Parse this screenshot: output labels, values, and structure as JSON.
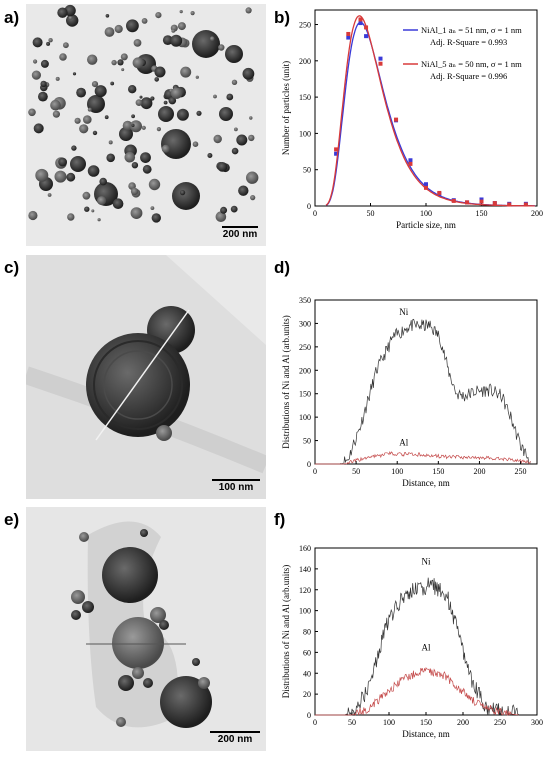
{
  "panels": {
    "a": {
      "letter": "a)",
      "scale_label": "200 nm"
    },
    "b": {
      "letter": "b)"
    },
    "c": {
      "letter": "c)",
      "scale_label": "100 nm"
    },
    "d": {
      "letter": "d)"
    },
    "e": {
      "letter": "e)",
      "scale_label": "200 nm"
    },
    "f": {
      "letter": "f)"
    }
  },
  "chart_data": [
    {
      "id": "b",
      "type": "line",
      "xlabel": "Particle size, nm",
      "ylabel": "Number of particles (unit)",
      "xlim": [
        0,
        200
      ],
      "ylim": [
        0,
        270
      ],
      "xticks": [
        0,
        50,
        100,
        150,
        200
      ],
      "yticks": [
        0,
        50,
        100,
        150,
        200,
        250
      ],
      "legend": [
        {
          "name": "NiAl_1",
          "fit": "aₙ = 51 nm, σ = 1 nm",
          "r2": "Adj. R-Square = 0.993",
          "color": "#3a3ad8"
        },
        {
          "name": "NiAl_5",
          "fit": "aₙ = 50 nm, σ = 1 nm",
          "r2": "Adj. R-Square = 0.996",
          "color": "#d83a3a"
        }
      ],
      "series": [
        {
          "color": "#3a3ad8",
          "points": [
            [
              19,
              72
            ],
            [
              30,
              232
            ],
            [
              41,
              252
            ],
            [
              46,
              234
            ],
            [
              59,
              203
            ],
            [
              73,
              118
            ],
            [
              86,
              63
            ],
            [
              100,
              30
            ],
            [
              112,
              17
            ],
            [
              125,
              8
            ],
            [
              137,
              5
            ],
            [
              150,
              9
            ],
            [
              162,
              4
            ],
            [
              175,
              3
            ],
            [
              190,
              3
            ]
          ],
          "fit": {
            "mode": 41,
            "peak": 253
          }
        },
        {
          "color": "#d83a3a",
          "points": [
            [
              19,
              78
            ],
            [
              30,
              237
            ],
            [
              41,
              257
            ],
            [
              46,
              246
            ],
            [
              59,
              196
            ],
            [
              73,
              119
            ],
            [
              86,
              58
            ],
            [
              100,
              25
            ],
            [
              112,
              18
            ],
            [
              125,
              7
            ],
            [
              137,
              5
            ],
            [
              150,
              6
            ],
            [
              162,
              4
            ],
            [
              175,
              2
            ],
            [
              190,
              2
            ]
          ],
          "fit": {
            "mode": 40,
            "peak": 262
          }
        }
      ]
    },
    {
      "id": "d",
      "type": "line",
      "xlabel": "Distance, nm",
      "ylabel": "Distributions of Ni and Al (arb.units)",
      "xlim": [
        0,
        270
      ],
      "ylim": [
        0,
        350
      ],
      "xticks": [
        0,
        50,
        100,
        150,
        200,
        250
      ],
      "yticks": [
        0,
        50,
        100,
        150,
        200,
        250,
        300,
        350
      ],
      "series": [
        {
          "name": "Ni",
          "color": "#333333",
          "profile": [
            [
              0,
              0
            ],
            [
              30,
              0
            ],
            [
              40,
              10
            ],
            [
              55,
              80
            ],
            [
              75,
              200
            ],
            [
              95,
              270
            ],
            [
              115,
              295
            ],
            [
              140,
              295
            ],
            [
              152,
              270
            ],
            [
              162,
              200
            ],
            [
              172,
              150
            ],
            [
              182,
              145
            ],
            [
              195,
              155
            ],
            [
              212,
              158
            ],
            [
              227,
              145
            ],
            [
              238,
              100
            ],
            [
              250,
              40
            ],
            [
              262,
              5
            ]
          ],
          "noise": 14
        },
        {
          "name": "Al",
          "color": "#c44a4a",
          "profile": [
            [
              0,
              0
            ],
            [
              35,
              0
            ],
            [
              60,
              12
            ],
            [
              90,
              22
            ],
            [
              125,
              20
            ],
            [
              160,
              15
            ],
            [
              200,
              14
            ],
            [
              235,
              10
            ],
            [
              262,
              3
            ]
          ],
          "noise": 4
        }
      ],
      "annotations": [
        {
          "text": "Ni",
          "x": 108,
          "y": 318
        },
        {
          "text": "Al",
          "x": 108,
          "y": 40
        }
      ]
    },
    {
      "id": "f",
      "type": "line",
      "xlabel": "Distance, nm",
      "ylabel": "Distributions of Ni and Al (arb.units)",
      "xlim": [
        0,
        300
      ],
      "ylim": [
        0,
        160
      ],
      "xticks": [
        0,
        50,
        100,
        150,
        200,
        250,
        300
      ],
      "yticks": [
        0,
        20,
        40,
        60,
        80,
        100,
        120,
        140,
        160
      ],
      "series": [
        {
          "name": "Ni",
          "color": "#333333",
          "profile": [
            [
              0,
              0
            ],
            [
              40,
              0
            ],
            [
              55,
              5
            ],
            [
              75,
              30
            ],
            [
              95,
              85
            ],
            [
              115,
              110
            ],
            [
              135,
              120
            ],
            [
              158,
              125
            ],
            [
              178,
              115
            ],
            [
              195,
              75
            ],
            [
              212,
              30
            ],
            [
              232,
              8
            ],
            [
              255,
              3
            ],
            [
              275,
              1
            ]
          ],
          "noise": 8
        },
        {
          "name": "Al",
          "color": "#c44a4a",
          "profile": [
            [
              0,
              0
            ],
            [
              50,
              0
            ],
            [
              70,
              5
            ],
            [
              95,
              20
            ],
            [
              120,
              35
            ],
            [
              150,
              43
            ],
            [
              175,
              38
            ],
            [
              200,
              22
            ],
            [
              225,
              8
            ],
            [
              255,
              2
            ],
            [
              275,
              0
            ]
          ],
          "noise": 4
        }
      ],
      "annotations": [
        {
          "text": "Ni",
          "x": 150,
          "y": 144
        },
        {
          "text": "Al",
          "x": 150,
          "y": 62
        }
      ]
    }
  ]
}
